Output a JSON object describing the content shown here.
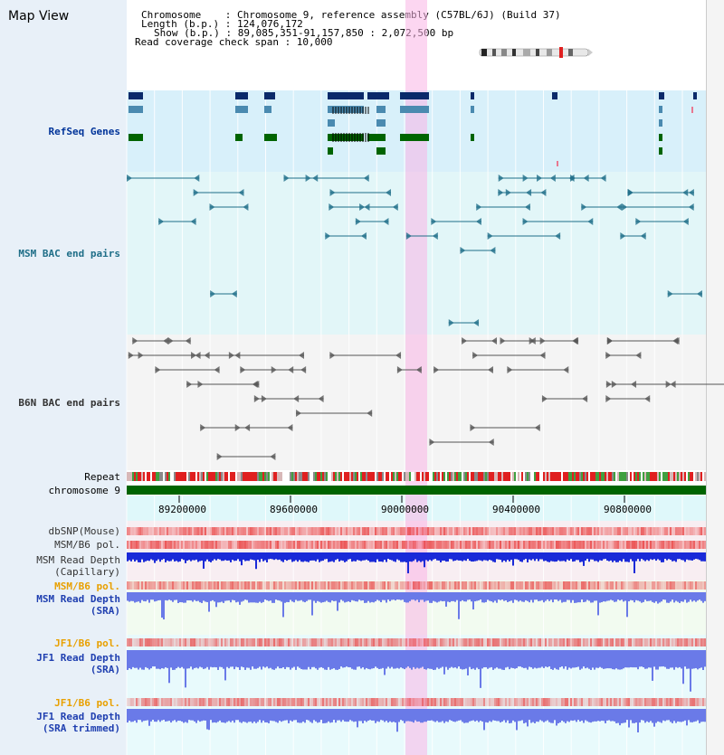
{
  "window": {
    "title": "Map View"
  },
  "header": {
    "rows": [
      {
        "label": "Chromosome",
        "value": "Chromosome 9, reference assembly (C57BL/6J) (Build 37)"
      },
      {
        "label": "Length (b.p.)",
        "value": "124,076,172"
      },
      {
        "label": "Show (b.p.)",
        "value": "89,085,351-91,157,850 : 2,072,500 bp"
      },
      {
        "label": "Read coverage check span",
        "value": "10,000"
      }
    ],
    "line1": "Chromosome    : Chromosome 9, reference assembly (C57BL/6J) (Build 37)",
    "line2": "Length (b.p.) : 124,076,172",
    "line3": "Show (b.p.) : 89,085,351-91,157,850 : 2,072,500 bp",
    "line4": "Read coverage check span : 10,000"
  },
  "tracks": {
    "refseq": {
      "label": "RefSeq Genes",
      "color": "#003399"
    },
    "msm_bac": {
      "label": "MSM BAC end pairs",
      "color": "#1f6e88"
    },
    "b6n_bac": {
      "label": "B6N BAC end pairs",
      "color": "#333333"
    },
    "repeat": {
      "label": "Repeat"
    },
    "chromosome": {
      "label": "chromosome 9",
      "color": "#006400"
    },
    "dbsnp": {
      "label": "dbSNP(Mouse)"
    },
    "msm_pol1": {
      "label": "MSM/B6 pol."
    },
    "msm_cap_l1": {
      "label": "MSM Read Depth"
    },
    "msm_cap_l2": {
      "label": "(Capillary)"
    },
    "msm_pol2": {
      "label": "MSM/B6 pol.",
      "color": "#e8a000"
    },
    "msm_sra_l1": {
      "label": "MSM Read Depth"
    },
    "msm_sra_l2": {
      "label": "(SRA)"
    },
    "jf1_pol1": {
      "label": "JF1/B6 pol.",
      "color": "#e8a000"
    },
    "jf1_sra_l1": {
      "label": "JF1 Read Depth"
    },
    "jf1_sra_l2": {
      "label": "(SRA)"
    },
    "jf1_pol2": {
      "label": "JF1/B6 pol.",
      "color": "#e8a000"
    },
    "jf1_trim_l1": {
      "label": "JF1 Read Depth"
    },
    "jf1_trim_l2": {
      "label": "(SRA trimmed)"
    }
  },
  "axis": {
    "ticks": [
      "89200000",
      "89600000",
      "90000000",
      "90400000",
      "90800000"
    ]
  },
  "colors": {
    "highlight": "#f8c8e8",
    "refseq_dark": "#0a2a6a",
    "refseq_mid": "#4a8ab0",
    "refseq_green": "#006400",
    "teal": "#1f6e88",
    "gray": "#555555",
    "depth_cap": "#1a2ad8",
    "depth_sra": "#6a7ae8",
    "pol": "#e83030"
  }
}
